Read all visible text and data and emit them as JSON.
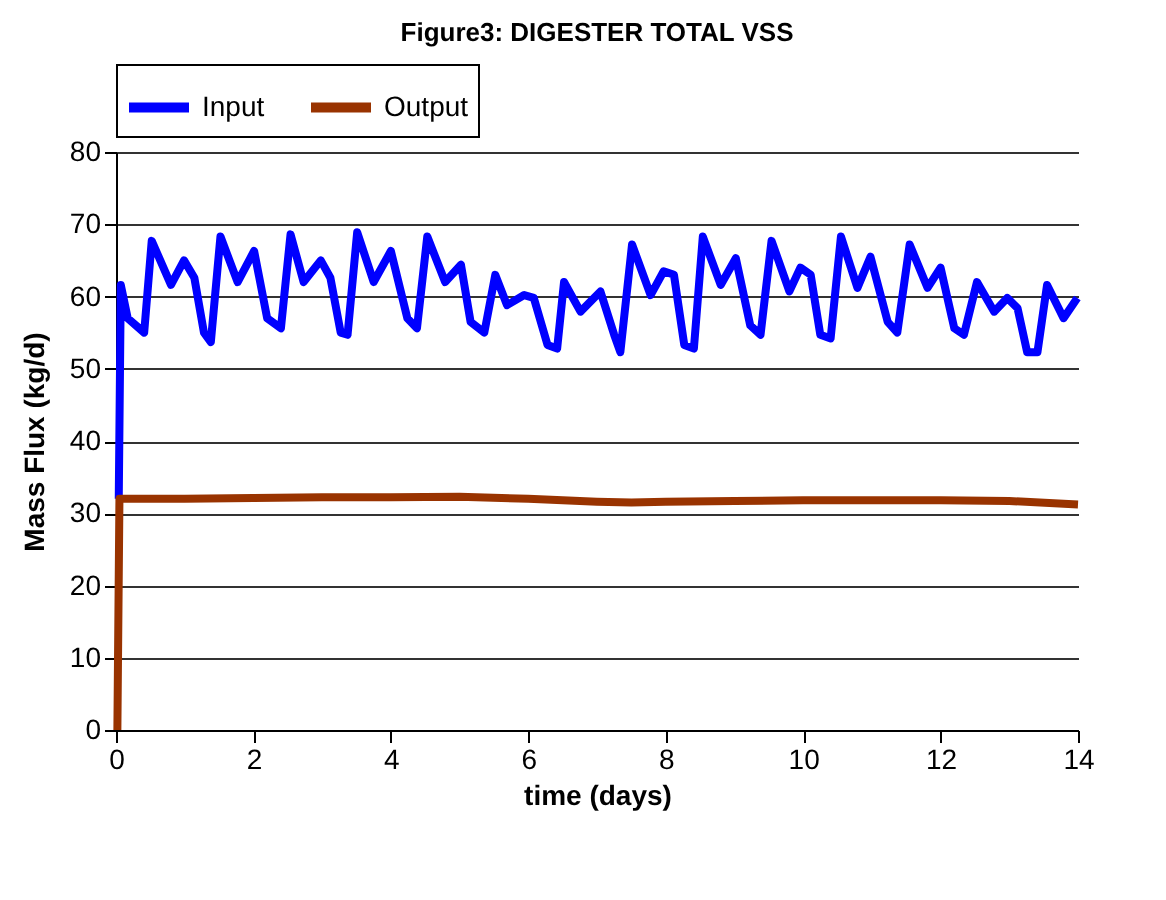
{
  "chart_data": {
    "type": "line",
    "title": "Figure3: DIGESTER TOTAL VSS",
    "xlabel": "time (days)",
    "ylabel": "Mass Flux (kg/d)",
    "xlim": [
      0,
      14
    ],
    "xticks": [
      0,
      2,
      4,
      6,
      8,
      10,
      12,
      14
    ],
    "ylim": [
      0,
      80
    ],
    "yticks": [
      0,
      10,
      20,
      30,
      40,
      50,
      60,
      70,
      80
    ],
    "grid": "y",
    "legend": "top",
    "line_style": "solid",
    "marker": "none",
    "series": [
      {
        "name": "Input",
        "color": "#0000ff",
        "x": [
          0.04,
          0.07,
          0.17,
          0.41,
          0.52,
          0.8,
          0.99,
          1.14,
          1.28,
          1.38,
          1.52,
          1.77,
          2.01,
          2.2,
          2.4,
          2.54,
          2.73,
          2.98,
          3.12,
          3.27,
          3.37,
          3.51,
          3.75,
          4.0,
          4.24,
          4.38,
          4.53,
          4.79,
          5.02,
          5.16,
          5.36,
          5.52,
          5.69,
          5.94,
          6.08,
          6.28,
          6.42,
          6.52,
          6.76,
          7.05,
          7.25,
          7.34,
          7.51,
          7.78,
          7.97,
          8.12,
          8.27,
          8.41,
          8.54,
          8.8,
          9.02,
          9.23,
          9.38,
          9.54,
          9.8,
          9.96,
          10.11,
          10.25,
          10.4,
          10.55,
          10.79,
          10.98,
          11.23,
          11.37,
          11.55,
          11.81,
          12.0,
          12.2,
          12.34,
          12.53,
          12.78,
          12.97,
          13.12,
          13.26,
          13.41,
          13.55,
          13.79,
          13.99
        ],
        "values": [
          32,
          61.6,
          57,
          55,
          67.7,
          61.6,
          65,
          62.6,
          55,
          53.7,
          68.3,
          62,
          66.3,
          57,
          55.6,
          68.6,
          62,
          65,
          62.6,
          55,
          54.7,
          68.9,
          62,
          66.3,
          57,
          55.6,
          68.3,
          62,
          64.4,
          56.5,
          55,
          63,
          58.8,
          60.2,
          59.8,
          53.3,
          52.8,
          62,
          57.9,
          60.7,
          54.7,
          52.3,
          67.2,
          60.2,
          63.5,
          63,
          53.3,
          52.8,
          68.3,
          61.6,
          65.3,
          56,
          54.7,
          67.7,
          60.7,
          64,
          63,
          54.7,
          54.2,
          68.3,
          61.2,
          65.5,
          56.5,
          55,
          67.2,
          61.2,
          64,
          55.6,
          54.7,
          62,
          57.9,
          59.8,
          58.4,
          52.3,
          52.3,
          61.6,
          57,
          59.8
        ]
      },
      {
        "name": "Output",
        "color": "#993300",
        "x": [
          0.02,
          0.05,
          1,
          2,
          3,
          4,
          5,
          6,
          7,
          7.5,
          8,
          9,
          10,
          11,
          12,
          13,
          14
        ],
        "values": [
          0,
          32,
          32,
          32.1,
          32.2,
          32.2,
          32.3,
          32,
          31.6,
          31.5,
          31.6,
          31.7,
          31.8,
          31.8,
          31.8,
          31.7,
          31.2
        ]
      }
    ]
  }
}
